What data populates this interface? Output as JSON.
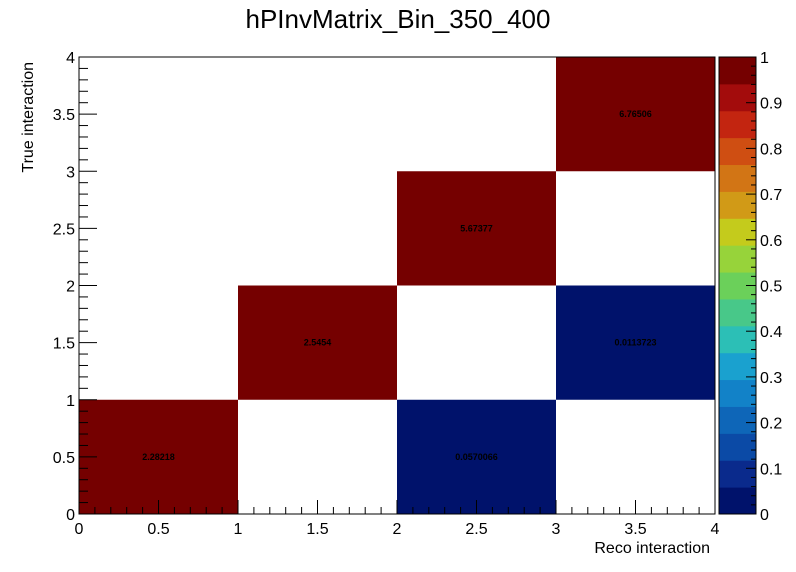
{
  "chart_data": {
    "type": "heatmap",
    "title": "hPInvMatrix_Bin_350_400",
    "xlabel": "Reco interaction",
    "ylabel": "True interaction",
    "xlim": [
      0,
      4
    ],
    "ylim": [
      0,
      4
    ],
    "x_tick_labels": [
      "0",
      "0.5",
      "1",
      "1.5",
      "2",
      "2.5",
      "3",
      "3.5",
      "4"
    ],
    "y_tick_labels": [
      "0",
      "0.5",
      "1",
      "1.5",
      "2",
      "2.5",
      "3",
      "3.5",
      "4"
    ],
    "x_bin_edges": [
      0,
      1,
      2,
      3,
      4
    ],
    "y_bin_edges": [
      0,
      1,
      2,
      3,
      4
    ],
    "cells": [
      {
        "x": 0.5,
        "y": 0.5,
        "value": 2.28218,
        "label": "2.28218"
      },
      {
        "x": 1.5,
        "y": 1.5,
        "value": 2.5454,
        "label": "2.5454"
      },
      {
        "x": 2.5,
        "y": 0.5,
        "value": 0.0570066,
        "label": "0.0570066"
      },
      {
        "x": 2.5,
        "y": 2.5,
        "value": 5.67377,
        "label": "5.67377"
      },
      {
        "x": 3.5,
        "y": 1.5,
        "value": 0.0113723,
        "label": "0.0113723"
      },
      {
        "x": 3.5,
        "y": 3.5,
        "value": 6.76506,
        "label": "6.76506"
      }
    ],
    "color_scale": {
      "min": 0,
      "max": 1,
      "tick_labels": [
        "0",
        "0.1",
        "0.2",
        "0.3",
        "0.4",
        "0.5",
        "0.6",
        "0.7",
        "0.8",
        "0.9",
        "1"
      ],
      "palette": [
        "#00126b",
        "#0a2a8c",
        "#0b4aa6",
        "#0e66b8",
        "#1282c8",
        "#1aa1cf",
        "#2cbfb6",
        "#48c889",
        "#6bd05a",
        "#97d33a",
        "#c4cb1c",
        "#d19a17",
        "#d27515",
        "#cf4e12",
        "#c32510",
        "#a30c0c",
        "#750000"
      ],
      "placement": "right"
    },
    "grid": false
  }
}
